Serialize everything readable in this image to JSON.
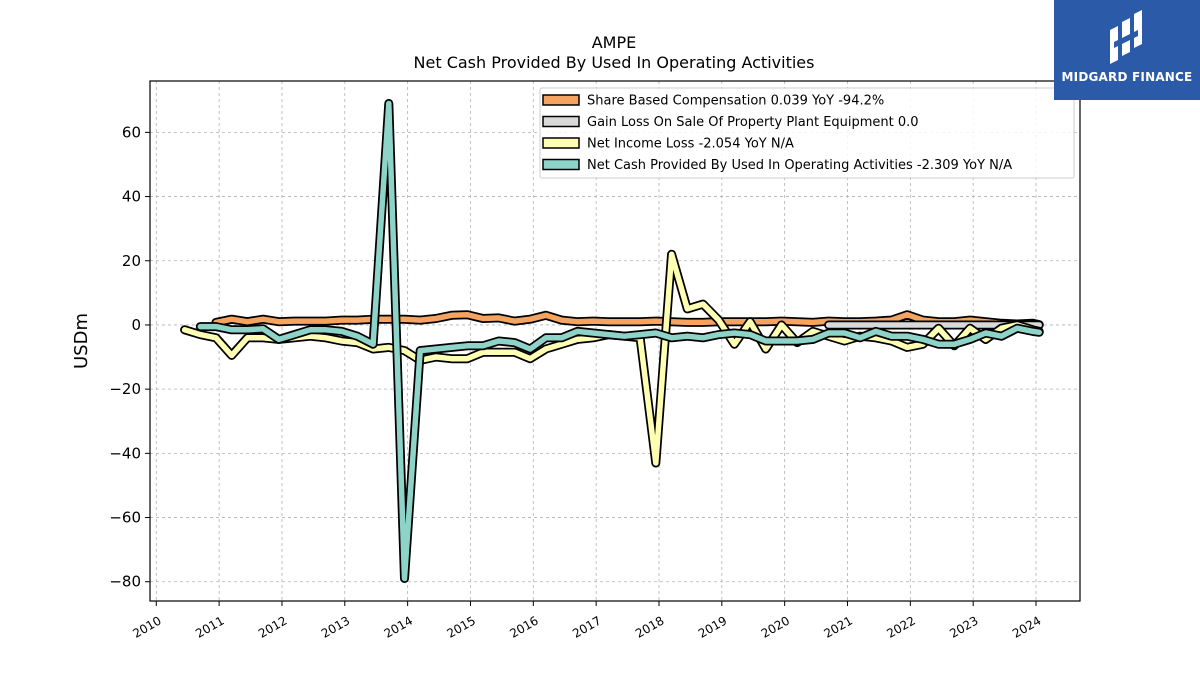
{
  "brand": {
    "name": "MIDGARD FINANCE",
    "bg_color": "#2a5aa8"
  },
  "chart_data": {
    "type": "line",
    "title": "AMPE",
    "subtitle": "Net Cash Provided By Used In Operating Activities",
    "ylabel": "USDm",
    "xlabel": "",
    "ylim": [
      -86,
      76
    ],
    "xlim": [
      2009.9,
      2024.7
    ],
    "yticks": [
      60,
      40,
      20,
      0,
      -20,
      -40,
      -60,
      -80
    ],
    "ytick_labels": [
      "60",
      "40",
      "20",
      "0",
      "−20",
      "−40",
      "−60",
      "−80"
    ],
    "xticks": [
      2010,
      2011,
      2012,
      2013,
      2014,
      2015,
      2016,
      2017,
      2018,
      2019,
      2020,
      2021,
      2022,
      2023,
      2024
    ],
    "xtick_labels": [
      "2010",
      "2011",
      "2012",
      "2013",
      "2014",
      "2015",
      "2016",
      "2017",
      "2018",
      "2019",
      "2020",
      "2021",
      "2022",
      "2023",
      "2024"
    ],
    "grid": true,
    "legend_position": "top-right",
    "series": [
      {
        "name": "Share Based Compensation",
        "legend": "Share Based Compensation  0.039 YoY -94.2%",
        "color": "#f4a460",
        "points": [
          [
            2010.95,
            0.8
          ],
          [
            2011.2,
            1.8
          ],
          [
            2011.45,
            1.0
          ],
          [
            2011.7,
            1.8
          ],
          [
            2011.95,
            1.0
          ],
          [
            2012.2,
            1.2
          ],
          [
            2012.45,
            1.2
          ],
          [
            2012.7,
            1.2
          ],
          [
            2012.95,
            1.5
          ],
          [
            2013.2,
            1.5
          ],
          [
            2013.45,
            1.8
          ],
          [
            2013.7,
            1.8
          ],
          [
            2013.95,
            1.8
          ],
          [
            2014.2,
            1.5
          ],
          [
            2014.45,
            2.0
          ],
          [
            2014.7,
            3.0
          ],
          [
            2014.95,
            3.2
          ],
          [
            2015.2,
            2.0
          ],
          [
            2015.45,
            2.2
          ],
          [
            2015.7,
            1.2
          ],
          [
            2015.95,
            1.8
          ],
          [
            2016.2,
            3.0
          ],
          [
            2016.45,
            1.5
          ],
          [
            2016.7,
            1.0
          ],
          [
            2016.95,
            1.2
          ],
          [
            2017.2,
            1.0
          ],
          [
            2017.45,
            1.0
          ],
          [
            2017.7,
            1.0
          ],
          [
            2017.95,
            1.2
          ],
          [
            2018.2,
            1.0
          ],
          [
            2018.45,
            0.8
          ],
          [
            2018.7,
            0.8
          ],
          [
            2018.95,
            1.0
          ],
          [
            2019.2,
            1.0
          ],
          [
            2019.45,
            1.0
          ],
          [
            2019.7,
            1.0
          ],
          [
            2019.95,
            1.2
          ],
          [
            2020.2,
            1.0
          ],
          [
            2020.45,
            0.8
          ],
          [
            2020.7,
            1.2
          ],
          [
            2020.95,
            1.0
          ],
          [
            2021.2,
            1.0
          ],
          [
            2021.45,
            1.2
          ],
          [
            2021.7,
            1.5
          ],
          [
            2021.95,
            3.2
          ],
          [
            2022.2,
            1.5
          ],
          [
            2022.45,
            1.0
          ],
          [
            2022.7,
            1.0
          ],
          [
            2022.95,
            1.5
          ],
          [
            2023.2,
            1.0
          ],
          [
            2023.45,
            0.5
          ],
          [
            2023.7,
            0.3
          ],
          [
            2023.95,
            0.5
          ],
          [
            2024.05,
            0.1
          ]
        ]
      },
      {
        "name": "Gain Loss On Sale Of Property Plant Equipment",
        "legend": "Gain Loss On Sale Of Property Plant Equipment  0.0",
        "color": "#d9d9d9",
        "points": [
          [
            2020.7,
            0.0
          ],
          [
            2024.05,
            0.0
          ]
        ]
      },
      {
        "name": "Net Income Loss",
        "legend": "Net Income Loss  -2.054 YoY N/A",
        "color": "#ffffb3",
        "points": [
          [
            2010.45,
            -1.5
          ],
          [
            2010.7,
            -3.0
          ],
          [
            2010.95,
            -4.0
          ],
          [
            2011.2,
            -9.5
          ],
          [
            2011.45,
            -4.0
          ],
          [
            2011.7,
            -4.0
          ],
          [
            2011.95,
            -4.5
          ],
          [
            2012.2,
            -4.0
          ],
          [
            2012.45,
            -3.5
          ],
          [
            2012.7,
            -4.0
          ],
          [
            2012.95,
            -5.0
          ],
          [
            2013.2,
            -5.5
          ],
          [
            2013.45,
            -7.5
          ],
          [
            2013.7,
            -7.0
          ],
          [
            2013.95,
            -8.0
          ],
          [
            2014.2,
            -11.0
          ],
          [
            2014.45,
            -10.0
          ],
          [
            2014.7,
            -10.5
          ],
          [
            2014.95,
            -10.5
          ],
          [
            2015.2,
            -8.5
          ],
          [
            2015.45,
            -8.5
          ],
          [
            2015.7,
            -8.5
          ],
          [
            2015.95,
            -10.5
          ],
          [
            2016.2,
            -7.5
          ],
          [
            2016.45,
            -6.0
          ],
          [
            2016.7,
            -4.5
          ],
          [
            2016.95,
            -4.0
          ],
          [
            2017.2,
            -3.0
          ],
          [
            2017.45,
            -3.5
          ],
          [
            2017.7,
            -4.0
          ],
          [
            2017.95,
            -43.0
          ],
          [
            2018.2,
            22.0
          ],
          [
            2018.45,
            5.0
          ],
          [
            2018.7,
            6.5
          ],
          [
            2018.95,
            1.5
          ],
          [
            2019.2,
            -6.0
          ],
          [
            2019.45,
            1.0
          ],
          [
            2019.7,
            -7.5
          ],
          [
            2019.95,
            0.0
          ],
          [
            2020.2,
            -5.5
          ],
          [
            2020.45,
            -2.0
          ],
          [
            2020.7,
            -3.5
          ],
          [
            2020.95,
            -5.0
          ],
          [
            2021.2,
            -3.5
          ],
          [
            2021.45,
            -4.0
          ],
          [
            2021.7,
            -5.0
          ],
          [
            2021.95,
            -7.0
          ],
          [
            2022.2,
            -6.0
          ],
          [
            2022.45,
            -1.0
          ],
          [
            2022.7,
            -6.5
          ],
          [
            2022.95,
            -1.0
          ],
          [
            2023.2,
            -4.5
          ],
          [
            2023.45,
            -1.0
          ],
          [
            2023.7,
            0.0
          ],
          [
            2023.95,
            -1.5
          ],
          [
            2024.05,
            -2.0
          ]
        ]
      },
      {
        "name": "Net Cash Provided By Used In Operating Activities",
        "legend": "Net Cash Provided By Used In Operating Activities  -2.309 YoY N/A",
        "color": "#8dd3c7",
        "points": [
          [
            2010.7,
            -0.5
          ],
          [
            2010.95,
            -0.5
          ],
          [
            2011.2,
            -1.5
          ],
          [
            2011.45,
            -1.5
          ],
          [
            2011.7,
            -1.2
          ],
          [
            2011.95,
            -4.5
          ],
          [
            2012.2,
            -3.0
          ],
          [
            2012.45,
            -1.5
          ],
          [
            2012.7,
            -1.5
          ],
          [
            2012.95,
            -2.0
          ],
          [
            2013.2,
            -3.5
          ],
          [
            2013.45,
            -6.0
          ],
          [
            2013.7,
            69.0
          ],
          [
            2013.95,
            -79.0
          ],
          [
            2014.2,
            -8.0
          ],
          [
            2014.45,
            -7.5
          ],
          [
            2014.7,
            -7.0
          ],
          [
            2014.95,
            -6.5
          ],
          [
            2015.2,
            -6.5
          ],
          [
            2015.45,
            -5.0
          ],
          [
            2015.7,
            -5.5
          ],
          [
            2015.95,
            -7.5
          ],
          [
            2016.2,
            -4.0
          ],
          [
            2016.45,
            -4.0
          ],
          [
            2016.7,
            -2.0
          ],
          [
            2016.95,
            -2.5
          ],
          [
            2017.2,
            -3.0
          ],
          [
            2017.45,
            -3.5
          ],
          [
            2017.7,
            -3.0
          ],
          [
            2017.95,
            -2.5
          ],
          [
            2018.2,
            -4.0
          ],
          [
            2018.45,
            -3.5
          ],
          [
            2018.7,
            -4.0
          ],
          [
            2018.95,
            -3.0
          ],
          [
            2019.2,
            -2.5
          ],
          [
            2019.45,
            -3.0
          ],
          [
            2019.7,
            -5.0
          ],
          [
            2019.95,
            -5.0
          ],
          [
            2020.2,
            -5.0
          ],
          [
            2020.45,
            -4.5
          ],
          [
            2020.7,
            -2.5
          ],
          [
            2020.95,
            -2.5
          ],
          [
            2021.2,
            -4.0
          ],
          [
            2021.45,
            -2.0
          ],
          [
            2021.7,
            -3.5
          ],
          [
            2021.95,
            -3.5
          ],
          [
            2022.2,
            -4.5
          ],
          [
            2022.45,
            -6.0
          ],
          [
            2022.7,
            -6.0
          ],
          [
            2022.95,
            -4.5
          ],
          [
            2023.2,
            -2.5
          ],
          [
            2023.45,
            -3.5
          ],
          [
            2023.7,
            -1.0
          ],
          [
            2023.95,
            -2.0
          ],
          [
            2024.05,
            -2.3
          ]
        ]
      }
    ]
  }
}
